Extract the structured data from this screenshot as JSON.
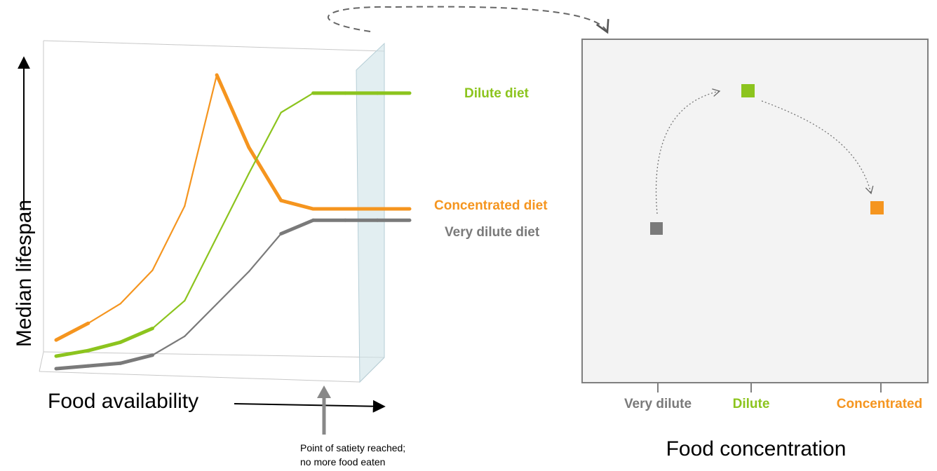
{
  "colors": {
    "dilute": "#8cc41e",
    "concentrated": "#f5951f",
    "very_dilute": "#7a7a7a",
    "box_fill": "#f3f3f3",
    "box_stroke": "#7f7f7f",
    "satiety_plane": "#cfe2e8"
  },
  "left_panel": {
    "y_axis_label": "Median lifespan",
    "x_axis_label": "Food availability",
    "satiety_note_line1": "Point of satiety reached;",
    "satiety_note_line2": "no more food eaten",
    "series_labels": {
      "dilute": "Dilute diet",
      "concentrated": "Concentrated diet",
      "very_dilute": "Very dilute diet"
    }
  },
  "right_panel": {
    "x_axis_label": "Food concentration",
    "ticks": [
      "Very dilute",
      "Dilute",
      "Concentrated"
    ]
  },
  "chart_data": {
    "type": "line",
    "xlabel": "Food availability",
    "ylabel": "Median lifespan",
    "x": [
      1,
      2,
      3,
      4,
      5,
      6,
      7,
      8,
      9,
      10,
      11,
      12
    ],
    "series": [
      {
        "name": "Concentrated diet",
        "values": [
          0.05,
          0.11,
          0.18,
          0.3,
          0.53,
          1.0,
          0.74,
          0.55,
          0.52,
          0.52,
          0.52,
          0.52
        ]
      },
      {
        "name": "Dilute diet",
        "values": [
          0.02,
          0.04,
          0.07,
          0.12,
          0.22,
          0.45,
          0.68,
          0.9,
          0.97,
          0.97,
          0.97,
          0.97
        ]
      },
      {
        "name": "Very dilute diet",
        "values": [
          0.0,
          0.01,
          0.02,
          0.05,
          0.12,
          0.24,
          0.36,
          0.5,
          0.55,
          0.55,
          0.55,
          0.55
        ]
      }
    ]
  }
}
